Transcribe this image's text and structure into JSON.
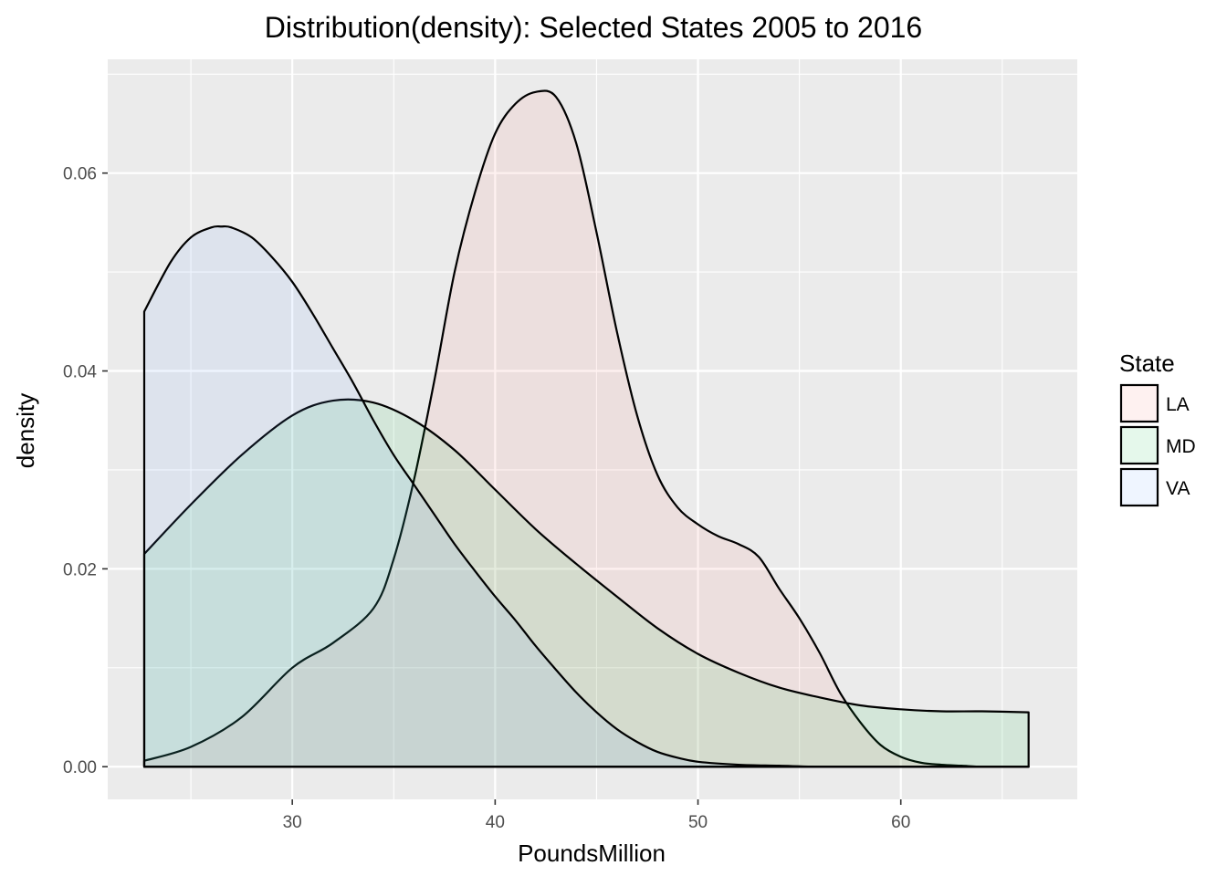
{
  "chart_data": {
    "type": "area",
    "title": "Distribution(density): Selected States 2005 to 2016",
    "xlabel": "PoundsMillion",
    "ylabel": "density",
    "xlim": [
      20.9,
      68.7
    ],
    "ylim": [
      -0.0033,
      0.0715
    ],
    "x_ticks": [
      30,
      40,
      50,
      60
    ],
    "x_tick_labels": [
      "30",
      "40",
      "50",
      "60"
    ],
    "x_minor_ticks": [
      25,
      35,
      45,
      55,
      65
    ],
    "y_ticks": [
      0.0,
      0.02,
      0.04,
      0.06
    ],
    "y_tick_labels": [
      "0.00",
      "0.02",
      "0.04",
      "0.06"
    ],
    "y_minor_ticks": [
      0.01,
      0.03,
      0.05,
      0.07
    ],
    "grid": true,
    "legend": {
      "title": "State",
      "position": "right",
      "entries": [
        "LA",
        "MD",
        "VA"
      ]
    },
    "colors": {
      "LA": "#F8766D",
      "MD": "#00BA38",
      "VA": "#619CFF",
      "panel": "#EBEBEB",
      "grid": "#FFFFFF",
      "outline": "#000000"
    },
    "fill_alpha": 0.1,
    "series": [
      {
        "name": "LA",
        "x": [
          22.7,
          25,
          27.5,
          30,
          32,
          34,
          35,
          36,
          37,
          38,
          39,
          40,
          41,
          42,
          43,
          44,
          45,
          46,
          47,
          48,
          49,
          50,
          51,
          52,
          53,
          54,
          55,
          56,
          57,
          58,
          59,
          60,
          61,
          62,
          63,
          64,
          65,
          66.3
        ],
        "y": [
          0.0006,
          0.002,
          0.005,
          0.01,
          0.0125,
          0.016,
          0.021,
          0.029,
          0.039,
          0.05,
          0.058,
          0.064,
          0.067,
          0.0682,
          0.0677,
          0.063,
          0.054,
          0.044,
          0.0355,
          0.0295,
          0.0262,
          0.0245,
          0.0233,
          0.0225,
          0.0212,
          0.018,
          0.015,
          0.0115,
          0.0075,
          0.0045,
          0.0022,
          0.001,
          0.0004,
          0.0002,
          0.0001,
          0.0,
          0.0,
          0.0
        ]
      },
      {
        "name": "MD",
        "x": [
          22.7,
          25,
          27.5,
          30,
          32,
          34,
          36,
          38,
          40,
          42,
          44,
          46,
          48,
          50,
          52,
          54,
          56,
          58,
          60,
          62,
          64,
          66.3
        ],
        "y": [
          0.0215,
          0.0265,
          0.0315,
          0.0355,
          0.037,
          0.0368,
          0.035,
          0.032,
          0.028,
          0.024,
          0.0205,
          0.0172,
          0.014,
          0.0114,
          0.0095,
          0.008,
          0.007,
          0.0062,
          0.0058,
          0.0056,
          0.0056,
          0.0055
        ]
      },
      {
        "name": "VA",
        "x": [
          22.7,
          24,
          25,
          26,
          26.5,
          27,
          28,
          29,
          30,
          31,
          32,
          33,
          34,
          35,
          36,
          37,
          38,
          39,
          40,
          41,
          42,
          43,
          44,
          45,
          46,
          47,
          48,
          49,
          50,
          52,
          54,
          56,
          58,
          60,
          62,
          64,
          66.3
        ],
        "y": [
          0.046,
          0.051,
          0.0535,
          0.0545,
          0.0546,
          0.0545,
          0.0535,
          0.0515,
          0.049,
          0.0458,
          0.0423,
          0.0388,
          0.035,
          0.0315,
          0.0285,
          0.0255,
          0.0225,
          0.0198,
          0.0172,
          0.0148,
          0.0122,
          0.0098,
          0.0075,
          0.0055,
          0.0038,
          0.0025,
          0.0015,
          0.0009,
          0.0005,
          0.0002,
          0.0001,
          0.0,
          0.0,
          0.0,
          0.0,
          0.0,
          0.0
        ]
      }
    ]
  }
}
